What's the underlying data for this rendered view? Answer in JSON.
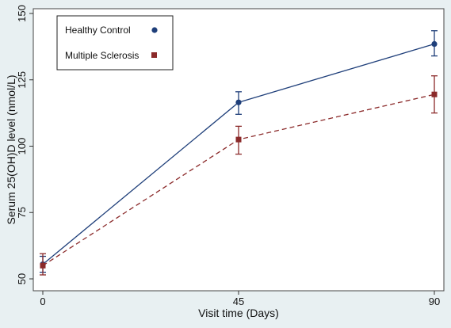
{
  "chart_data": {
    "type": "line",
    "x": [
      0,
      45,
      90
    ],
    "xticks": [
      "0",
      "45",
      "90"
    ],
    "yticks": [
      "50",
      "75",
      "100",
      "125",
      "150"
    ],
    "xlim": [
      0,
      90
    ],
    "ylim": [
      50,
      150
    ],
    "xlabel": "Visit time (Days)",
    "ylabel": "Serum 25(OH)D level (nmol/L)",
    "grid": false,
    "legend_position": "top-left",
    "series": [
      {
        "name": "Healthy Control",
        "values": [
          55.5,
          116.5,
          138.5
        ],
        "error_low": [
          52.5,
          112,
          134
        ],
        "error_high": [
          58.5,
          120.5,
          143.5
        ],
        "color": "#1f3f7a",
        "marker": "circle",
        "line_style": "solid"
      },
      {
        "name": "Multiple Sclerosis",
        "values": [
          55,
          102.5,
          119.5
        ],
        "error_low": [
          51.5,
          97,
          112.5
        ],
        "error_high": [
          59.5,
          107.5,
          126.5
        ],
        "color": "#8b2a2a",
        "marker": "square",
        "line_style": "dashed"
      }
    ]
  }
}
